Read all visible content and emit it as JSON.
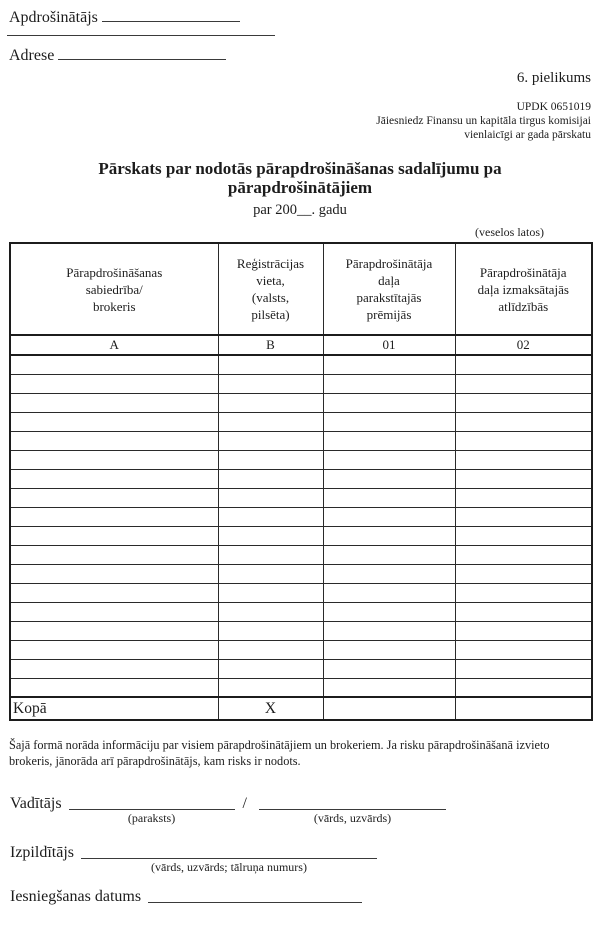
{
  "form": {
    "insurer_label": "Apdrošinātājs",
    "address_label": "Adrese",
    "annex_label": "6. pielikums",
    "updk_code": "UPDK 0651019",
    "submit_note_line1": "Jāiesniedz Finansu un kapitāla tirgus komisijai",
    "submit_note_line2": "vienlaicīgi ar gada pārskatu",
    "title_line1": "Pārskats par nodotās pārapdrošināšanas sadalījumu pa",
    "title_line2": "pārapdrošinātājiem",
    "subtitle": "par 200__. gadu",
    "units_note": "(veselos latos)",
    "table": {
      "columns": [
        {
          "header": "Pārapdrošināšanas\nsabiedrība/\nbrokeris",
          "code": "A"
        },
        {
          "header": "Reģistrācijas\nvieta,\n(valsts,\npilsēta)",
          "code": "B"
        },
        {
          "header": "Pārapdrošinātāja\ndaļa\nparakstītajās\nprēmijās",
          "code": "01"
        },
        {
          "header": "Pārapdrošinātāja\ndaļa izmaksātajās\natlīdzībās",
          "code": "02"
        }
      ],
      "body_row_count": 18,
      "total_row": {
        "label": "Kopā",
        "col_b": "X",
        "col_01": "",
        "col_02": ""
      }
    },
    "footnote": "Šajā formā norāda informāciju par visiem pārapdrošinātājiem un brokeriem. Ja risku pārapdrošināšanā izvieto brokeris, jānorāda arī pārapdrošinātājs, kam risks ir nodots.",
    "signatures": {
      "manager_label": "Vadītājs",
      "manager_sub_signature": "(paraksts)",
      "separator": "/",
      "manager_sub_name": "(vārds, uzvārds)",
      "executor_label": "Izpildītājs",
      "executor_sub": "(vārds, uzvārds; tālruņa numurs)",
      "date_label": "Iesniegšanas datums"
    }
  }
}
